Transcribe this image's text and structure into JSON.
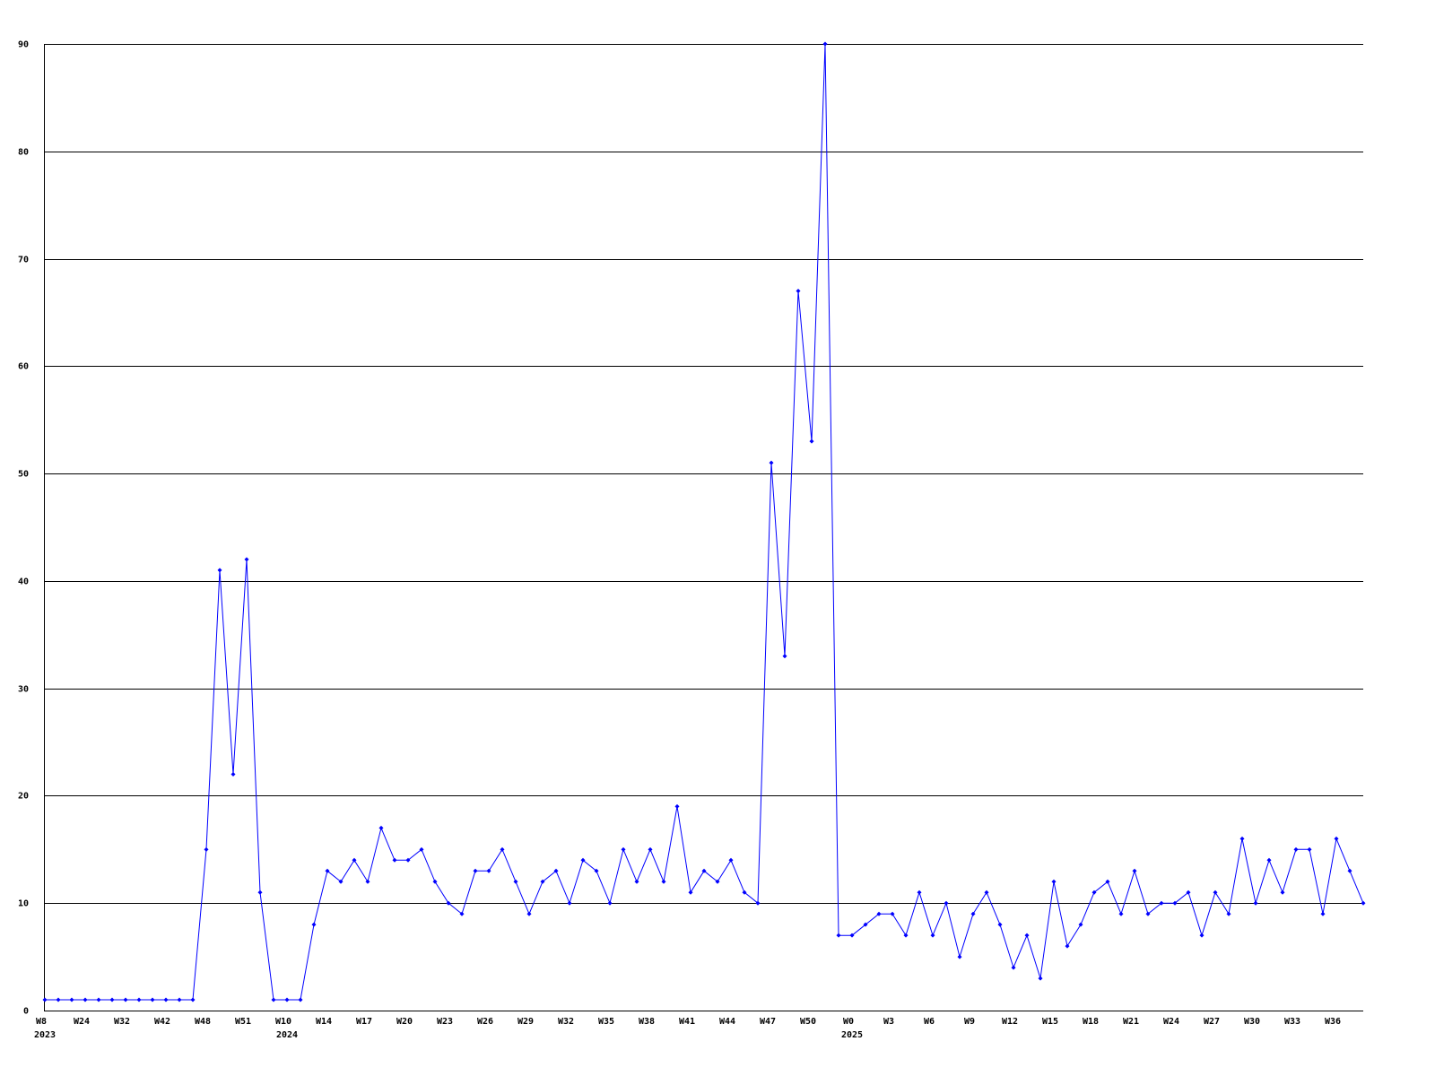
{
  "chart_data": {
    "type": "line",
    "title": "",
    "xlabel": "",
    "ylabel": "",
    "ylim": [
      0,
      90
    ],
    "y_ticks": [
      0,
      10,
      20,
      30,
      40,
      50,
      60,
      70,
      80,
      90
    ],
    "grid": "horizontal",
    "colors": {
      "series": "#0000ff",
      "grid": "#000000",
      "axis": "#000000"
    },
    "x_tick_labels": [
      "W8",
      "W24",
      "W32",
      "W42",
      "W48",
      "W51",
      "W10",
      "W14",
      "W17",
      "W20",
      "W23",
      "W26",
      "W29",
      "W32",
      "W35",
      "W38",
      "W41",
      "W44",
      "W47",
      "W50",
      "W0",
      "W3",
      "W6",
      "W9",
      "W12",
      "W15",
      "W18",
      "W21",
      "W24",
      "W27",
      "W30",
      "W33",
      "W36"
    ],
    "x_tick_every_points": 3,
    "year_labels": [
      {
        "label": "2023",
        "tick_index": 0
      },
      {
        "label": "2024",
        "tick_index": 6
      },
      {
        "label": "2025",
        "tick_index": 20
      }
    ],
    "series": [
      {
        "values": [
          1,
          1,
          1,
          1,
          1,
          1,
          1,
          1,
          1,
          1,
          1,
          1,
          15,
          41,
          22,
          42,
          11,
          1,
          1,
          1,
          8,
          13,
          12,
          14,
          12,
          17,
          14,
          14,
          15,
          12,
          10,
          9,
          13,
          13,
          15,
          12,
          9,
          12,
          13,
          10,
          14,
          13,
          10,
          15,
          12,
          15,
          12,
          19,
          11,
          13,
          12,
          14,
          11,
          10,
          51,
          33,
          67,
          53,
          90,
          7,
          7,
          8,
          9,
          9,
          7,
          11,
          7,
          10,
          5,
          9,
          11,
          8,
          4,
          7,
          3,
          12,
          6,
          8,
          11,
          12,
          9,
          13,
          9,
          10,
          10,
          11,
          7,
          11,
          9,
          16,
          10,
          14,
          11,
          15,
          15,
          9,
          16,
          13,
          10
        ]
      }
    ]
  }
}
